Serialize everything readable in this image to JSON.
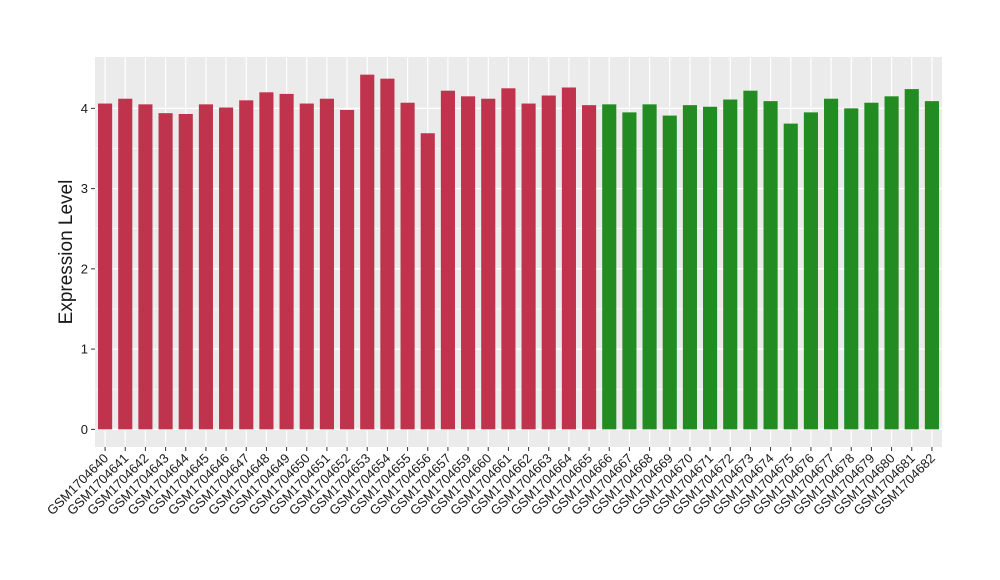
{
  "chart_data": {
    "type": "bar",
    "y_label": "Expression Level",
    "categories": [
      "GSM1704640",
      "GSM1704641",
      "GSM1704642",
      "GSM1704643",
      "GSM1704644",
      "GSM1704645",
      "GSM1704646",
      "GSM1704647",
      "GSM1704648",
      "GSM1704649",
      "GSM1704650",
      "GSM1704651",
      "GSM1704652",
      "GSM1704653",
      "GSM1704654",
      "GSM1704655",
      "GSM1704656",
      "GSM1704657",
      "GSM1704659",
      "GSM1704660",
      "GSM1704661",
      "GSM1704662",
      "GSM1704663",
      "GSM1704664",
      "GSM1704665",
      "GSM1704666",
      "GSM1704667",
      "GSM1704668",
      "GSM1704669",
      "GSM1704670",
      "GSM1704671",
      "GSM1704672",
      "GSM1704673",
      "GSM1704674",
      "GSM1704675",
      "GSM1704676",
      "GSM1704677",
      "GSM1704678",
      "GSM1704679",
      "GSM1704680",
      "GSM1704681",
      "GSM1704682"
    ],
    "values": [
      4.06,
      4.12,
      4.05,
      3.94,
      3.93,
      4.05,
      4.01,
      4.1,
      4.2,
      4.18,
      4.06,
      4.12,
      3.98,
      4.42,
      4.37,
      4.07,
      3.69,
      4.22,
      4.15,
      4.12,
      4.25,
      4.06,
      4.16,
      4.26,
      4.04,
      4.05,
      3.95,
      4.05,
      3.91,
      4.04,
      4.02,
      4.11,
      4.22,
      4.09,
      3.81,
      3.95,
      4.12,
      4.0,
      4.07,
      4.15,
      4.24,
      4.09
    ],
    "colors": [
      "#c0334d",
      "#c0334d",
      "#c0334d",
      "#c0334d",
      "#c0334d",
      "#c0334d",
      "#c0334d",
      "#c0334d",
      "#c0334d",
      "#c0334d",
      "#c0334d",
      "#c0334d",
      "#c0334d",
      "#c0334d",
      "#c0334d",
      "#c0334d",
      "#c0334d",
      "#c0334d",
      "#c0334d",
      "#c0334d",
      "#c0334d",
      "#c0334d",
      "#c0334d",
      "#c0334d",
      "#c0334d",
      "#228b22",
      "#228b22",
      "#228b22",
      "#228b22",
      "#228b22",
      "#228b22",
      "#228b22",
      "#228b22",
      "#228b22",
      "#228b22",
      "#228b22",
      "#228b22",
      "#228b22",
      "#228b22",
      "#228b22",
      "#228b22",
      "#228b22"
    ],
    "ylim": [
      -0.22,
      4.64
    ],
    "yticks": [
      0,
      1,
      2,
      3,
      4
    ],
    "grid": true
  }
}
